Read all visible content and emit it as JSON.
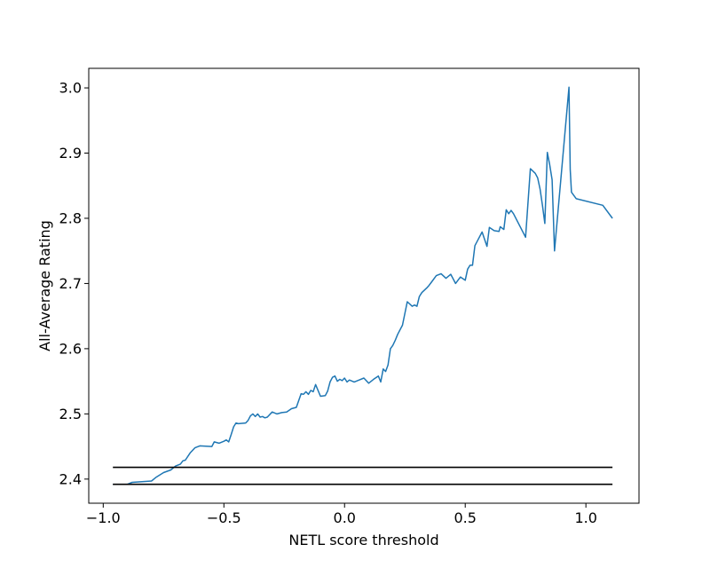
{
  "chart_data": {
    "type": "line",
    "title": "",
    "xlabel": "NETL score threshold",
    "ylabel": "All-Average Rating",
    "xlim": [
      -1.06,
      1.22
    ],
    "ylim": [
      2.363,
      3.03
    ],
    "x_ticks": [
      -1.0,
      -0.5,
      0.0,
      0.5,
      1.0
    ],
    "x_tick_labels": [
      "−1.0",
      "−0.5",
      "0.0",
      "0.5",
      "1.0"
    ],
    "y_ticks": [
      2.4,
      2.5,
      2.6,
      2.7,
      2.8,
      2.9,
      3.0
    ],
    "y_tick_labels": [
      "2.4",
      "2.5",
      "2.6",
      "2.7",
      "2.8",
      "2.9",
      "3.0"
    ],
    "grid": false,
    "colors": {
      "series": "#1f77b4",
      "reference": "#000000"
    },
    "series": [
      {
        "x": [
          -0.96,
          -0.9,
          -0.88,
          -0.8,
          -0.78,
          -0.75,
          -0.72,
          -0.7,
          -0.68,
          -0.67,
          -0.66,
          -0.64,
          -0.62,
          -0.6,
          -0.55,
          -0.54,
          -0.52,
          -0.5,
          -0.49,
          -0.48,
          -0.47,
          -0.46,
          -0.45,
          -0.44,
          -0.41,
          -0.4,
          -0.39,
          -0.38,
          -0.37,
          -0.36,
          -0.35,
          -0.34,
          -0.33,
          -0.32,
          -0.3,
          -0.28,
          -0.26,
          -0.24,
          -0.22,
          -0.2,
          -0.18,
          -0.17,
          -0.16,
          -0.15,
          -0.14,
          -0.13,
          -0.12,
          -0.1,
          -0.08,
          -0.07,
          -0.06,
          -0.05,
          -0.04,
          -0.03,
          -0.02,
          -0.01,
          0.0,
          0.01,
          0.02,
          0.04,
          0.06,
          0.08,
          0.1,
          0.12,
          0.14,
          0.15,
          0.16,
          0.17,
          0.18,
          0.19,
          0.2,
          0.21,
          0.22,
          0.24,
          0.26,
          0.28,
          0.29,
          0.3,
          0.31,
          0.32,
          0.34,
          0.35,
          0.36,
          0.38,
          0.4,
          0.42,
          0.44,
          0.46,
          0.48,
          0.5,
          0.51,
          0.52,
          0.53,
          0.54,
          0.55,
          0.57,
          0.59,
          0.6,
          0.62,
          0.64,
          0.645,
          0.66,
          0.67,
          0.68,
          0.69,
          0.7,
          0.75,
          0.77,
          0.79,
          0.8,
          0.81,
          0.82,
          0.83,
          0.84,
          0.85,
          0.86,
          0.87,
          0.93,
          0.935,
          0.94,
          0.96,
          1.07,
          1.11
        ],
        "y": [
          2.392,
          2.392,
          2.395,
          2.397,
          2.403,
          2.41,
          2.414,
          2.42,
          2.423,
          2.428,
          2.429,
          2.44,
          2.448,
          2.451,
          2.45,
          2.457,
          2.455,
          2.458,
          2.46,
          2.457,
          2.468,
          2.48,
          2.486,
          2.485,
          2.486,
          2.49,
          2.497,
          2.5,
          2.496,
          2.5,
          2.495,
          2.496,
          2.494,
          2.495,
          2.503,
          2.5,
          2.502,
          2.503,
          2.508,
          2.51,
          2.531,
          2.53,
          2.534,
          2.53,
          2.536,
          2.534,
          2.545,
          2.527,
          2.528,
          2.535,
          2.549,
          2.556,
          2.558,
          2.55,
          2.553,
          2.551,
          2.555,
          2.549,
          2.552,
          2.549,
          2.552,
          2.555,
          2.547,
          2.553,
          2.558,
          2.549,
          2.569,
          2.565,
          2.575,
          2.6,
          2.605,
          2.613,
          2.622,
          2.636,
          2.672,
          2.665,
          2.667,
          2.665,
          2.68,
          2.686,
          2.693,
          2.697,
          2.702,
          2.712,
          2.715,
          2.708,
          2.714,
          2.7,
          2.71,
          2.705,
          2.722,
          2.728,
          2.728,
          2.758,
          2.765,
          2.779,
          2.757,
          2.786,
          2.781,
          2.78,
          2.787,
          2.783,
          2.813,
          2.807,
          2.812,
          2.807,
          2.771,
          2.876,
          2.869,
          2.862,
          2.845,
          2.82,
          2.792,
          2.901,
          2.882,
          2.859,
          2.75,
          3.001,
          2.875,
          2.84,
          2.83,
          2.82,
          2.8
        ],
        "note_removed": true
      },
      {
        "x": [
          -0.96,
          1.11
        ],
        "y": [
          2.418,
          2.418
        ]
      },
      {
        "x": [
          -0.96,
          1.11
        ],
        "y": [
          2.392,
          2.392
        ]
      }
    ]
  }
}
